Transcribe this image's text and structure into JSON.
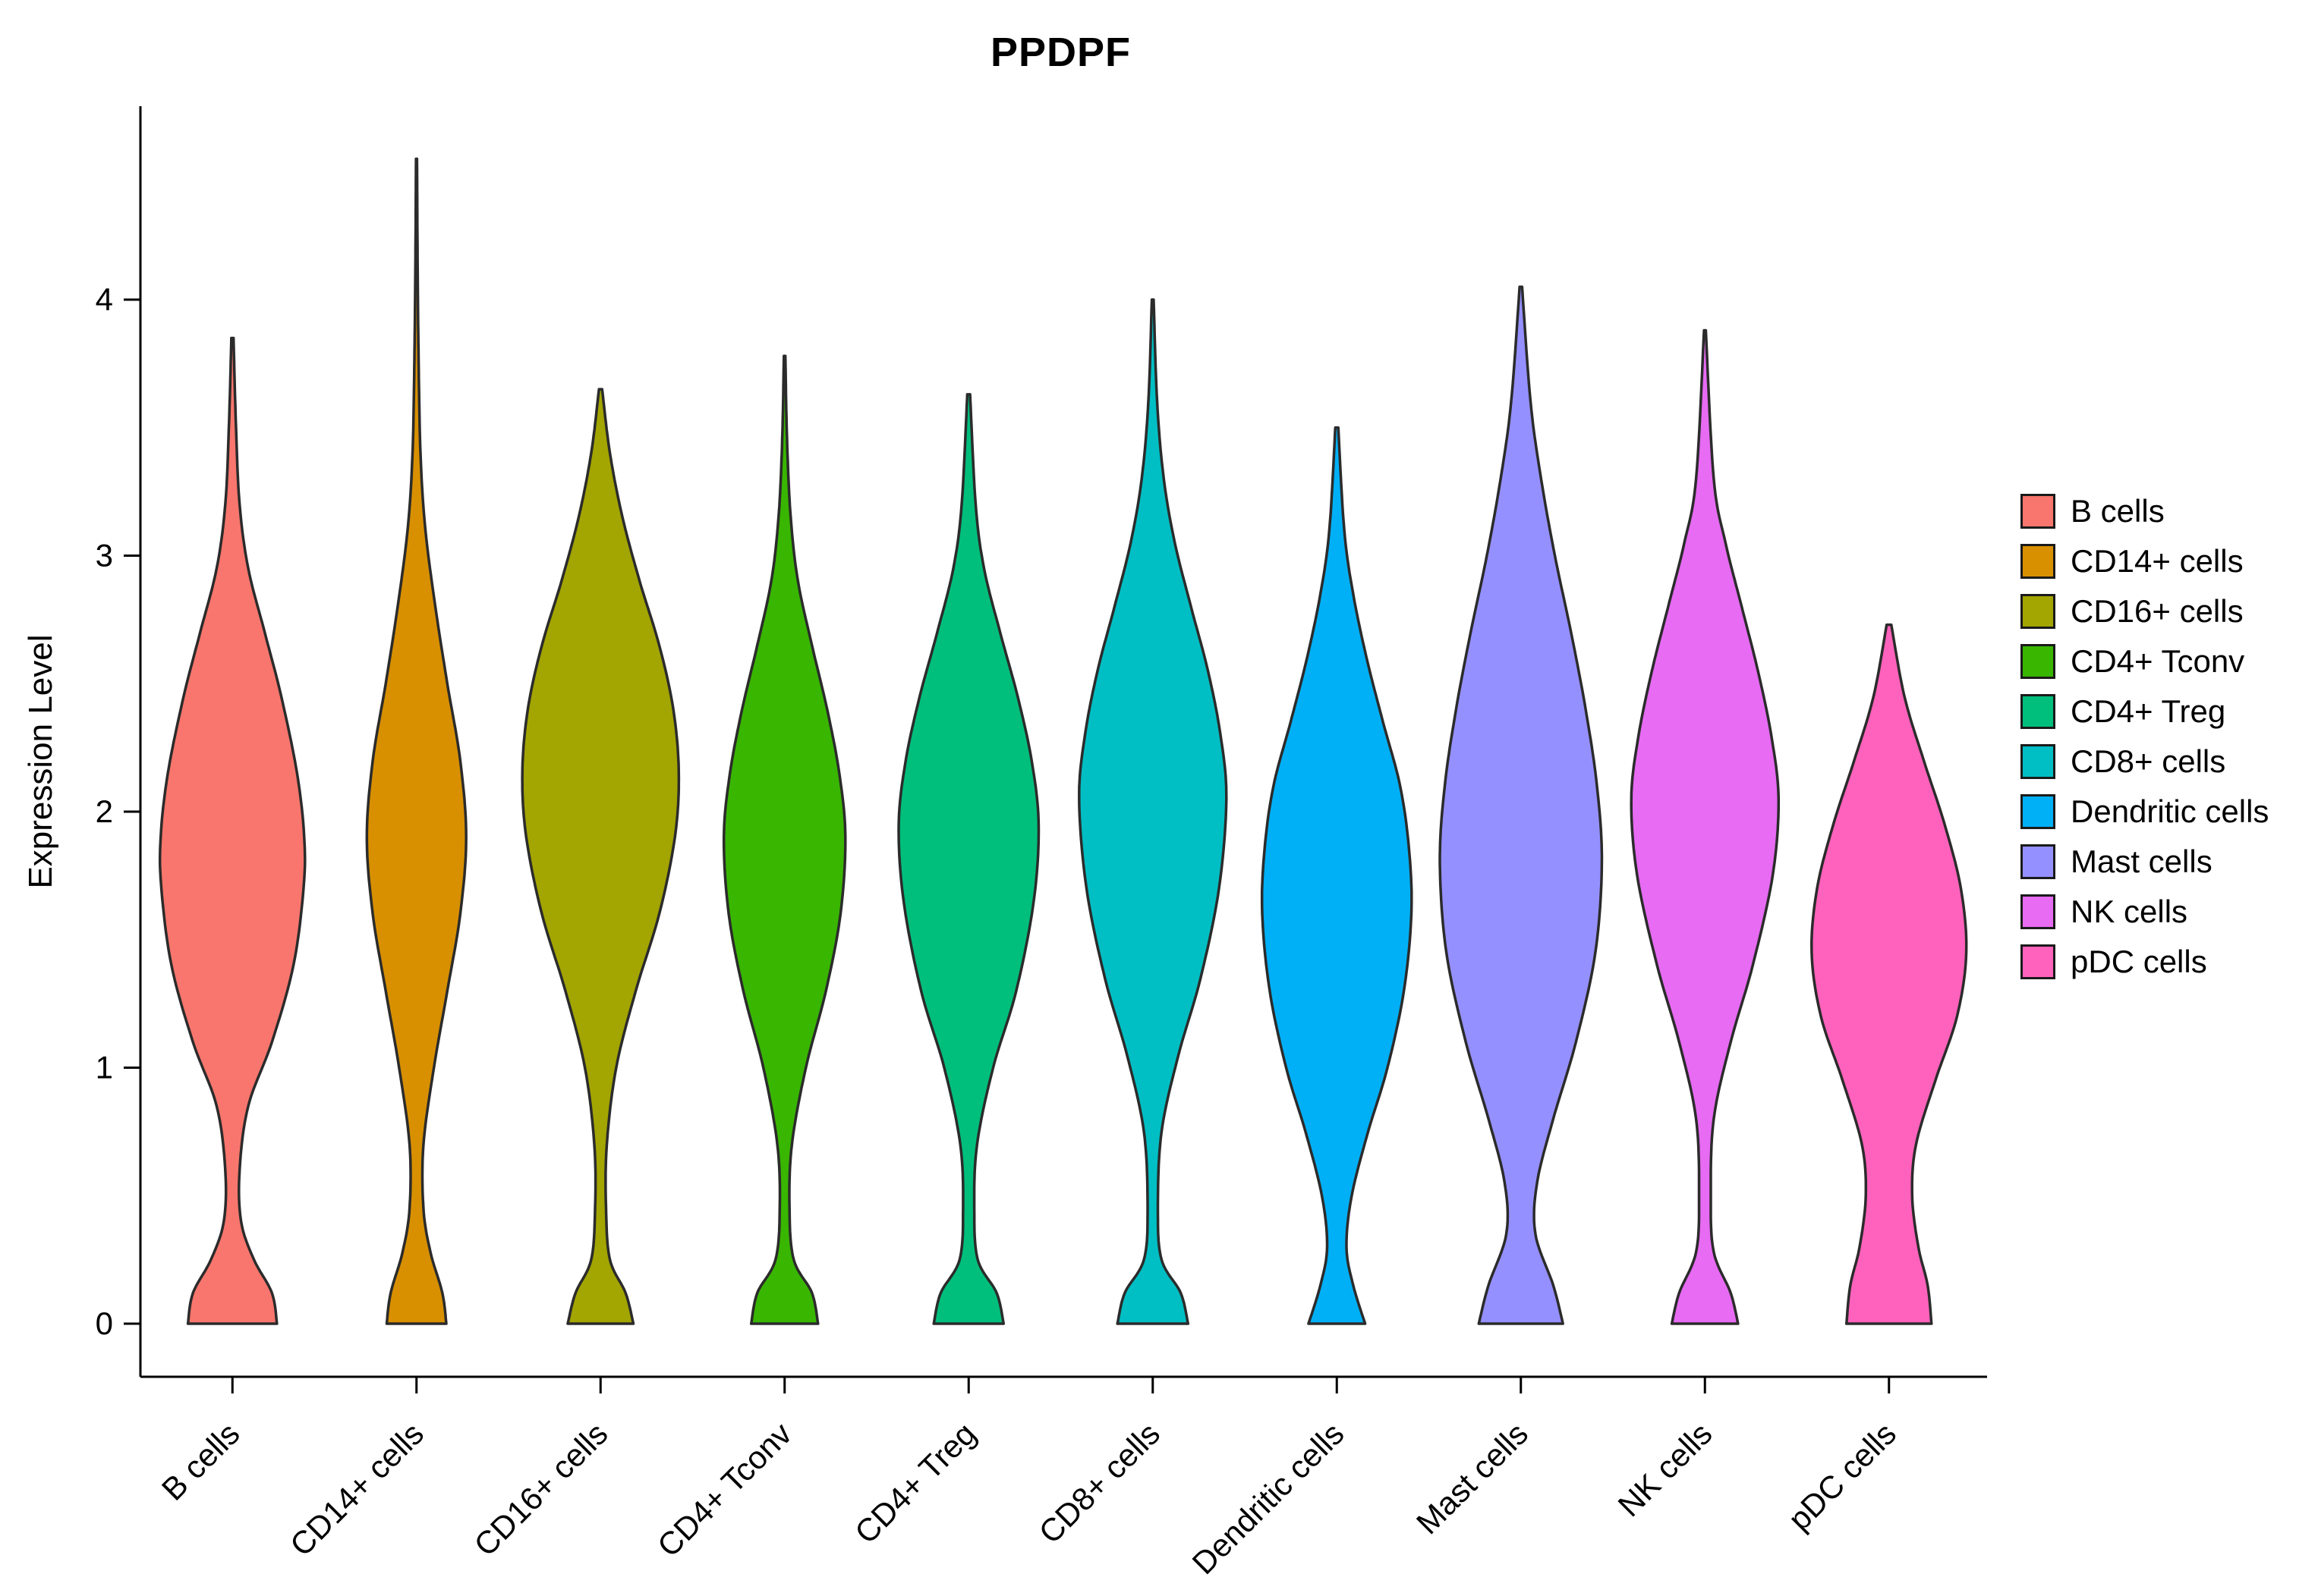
{
  "title": "PPDPF",
  "chart_data": {
    "type": "violin",
    "title": "PPDPF",
    "xlabel": "",
    "ylabel": "Expression Level",
    "ylim": [
      0,
      4.7
    ],
    "y_ticks": [
      0,
      1,
      2,
      3,
      4
    ],
    "grid": false,
    "legend_position": "right",
    "outline_color": "#2b2b2b",
    "categories": [
      "B cells",
      "CD14+ cells",
      "CD16+ cells",
      "CD4+ Tconv",
      "CD4+ Treg",
      "CD8+ cells",
      "Dendritic cells",
      "Mast cells",
      "NK cells",
      "pDC cells"
    ],
    "series": [
      {
        "name": "B cells",
        "color": "#F8766D",
        "max_expression": 3.85,
        "peak_at": 1.85,
        "rel_width": 0.78,
        "profile": [
          [
            0,
            0.62
          ],
          [
            0.12,
            0.55
          ],
          [
            0.25,
            0.3
          ],
          [
            0.4,
            0.12
          ],
          [
            0.6,
            0.1
          ],
          [
            0.85,
            0.22
          ],
          [
            1.1,
            0.55
          ],
          [
            1.4,
            0.85
          ],
          [
            1.7,
            0.99
          ],
          [
            1.9,
            1.0
          ],
          [
            2.15,
            0.9
          ],
          [
            2.45,
            0.68
          ],
          [
            2.7,
            0.45
          ],
          [
            2.95,
            0.22
          ],
          [
            3.2,
            0.1
          ],
          [
            3.5,
            0.05
          ],
          [
            3.85,
            0.015
          ]
        ]
      },
      {
        "name": "CD14+ cells",
        "color": "#D89000",
        "max_expression": 4.55,
        "peak_at": 1.9,
        "rel_width": 0.54,
        "profile": [
          [
            0,
            0.6
          ],
          [
            0.12,
            0.52
          ],
          [
            0.28,
            0.28
          ],
          [
            0.45,
            0.14
          ],
          [
            0.7,
            0.14
          ],
          [
            1.0,
            0.35
          ],
          [
            1.3,
            0.62
          ],
          [
            1.6,
            0.88
          ],
          [
            1.9,
            1.0
          ],
          [
            2.2,
            0.88
          ],
          [
            2.5,
            0.62
          ],
          [
            2.8,
            0.38
          ],
          [
            3.1,
            0.18
          ],
          [
            3.4,
            0.08
          ],
          [
            3.8,
            0.04
          ],
          [
            4.2,
            0.02
          ],
          [
            4.55,
            0.01
          ]
        ]
      },
      {
        "name": "CD16+ cells",
        "color": "#A3A500",
        "max_expression": 3.65,
        "peak_at": 2.15,
        "rel_width": 0.85,
        "profile": [
          [
            0,
            0.42
          ],
          [
            0.12,
            0.32
          ],
          [
            0.25,
            0.12
          ],
          [
            0.45,
            0.07
          ],
          [
            0.7,
            0.08
          ],
          [
            1.0,
            0.2
          ],
          [
            1.3,
            0.45
          ],
          [
            1.6,
            0.75
          ],
          [
            1.9,
            0.95
          ],
          [
            2.15,
            1.0
          ],
          [
            2.4,
            0.93
          ],
          [
            2.65,
            0.75
          ],
          [
            2.9,
            0.5
          ],
          [
            3.15,
            0.28
          ],
          [
            3.4,
            0.12
          ],
          [
            3.65,
            0.02
          ]
        ]
      },
      {
        "name": "CD4+ Tconv",
        "color": "#39B600",
        "max_expression": 3.78,
        "peak_at": 1.9,
        "rel_width": 0.66,
        "profile": [
          [
            0,
            0.55
          ],
          [
            0.12,
            0.45
          ],
          [
            0.25,
            0.15
          ],
          [
            0.45,
            0.08
          ],
          [
            0.7,
            0.12
          ],
          [
            1.0,
            0.35
          ],
          [
            1.3,
            0.68
          ],
          [
            1.6,
            0.92
          ],
          [
            1.9,
            1.0
          ],
          [
            2.15,
            0.9
          ],
          [
            2.4,
            0.7
          ],
          [
            2.65,
            0.45
          ],
          [
            2.9,
            0.22
          ],
          [
            3.15,
            0.1
          ],
          [
            3.45,
            0.04
          ],
          [
            3.78,
            0.012
          ]
        ]
      },
      {
        "name": "CD4+ Treg",
        "color": "#00BF7D",
        "max_expression": 3.63,
        "peak_at": 1.95,
        "rel_width": 0.76,
        "profile": [
          [
            0,
            0.5
          ],
          [
            0.12,
            0.4
          ],
          [
            0.25,
            0.13
          ],
          [
            0.45,
            0.08
          ],
          [
            0.7,
            0.12
          ],
          [
            1.0,
            0.35
          ],
          [
            1.3,
            0.68
          ],
          [
            1.65,
            0.93
          ],
          [
            1.95,
            1.0
          ],
          [
            2.2,
            0.9
          ],
          [
            2.45,
            0.7
          ],
          [
            2.7,
            0.45
          ],
          [
            2.95,
            0.22
          ],
          [
            3.2,
            0.1
          ],
          [
            3.63,
            0.02
          ]
        ]
      },
      {
        "name": "CD8+ cells",
        "color": "#00BFC4",
        "max_expression": 4.0,
        "peak_at": 2.05,
        "rel_width": 0.8,
        "profile": [
          [
            0,
            0.48
          ],
          [
            0.12,
            0.38
          ],
          [
            0.25,
            0.12
          ],
          [
            0.45,
            0.07
          ],
          [
            0.75,
            0.12
          ],
          [
            1.05,
            0.35
          ],
          [
            1.35,
            0.65
          ],
          [
            1.7,
            0.9
          ],
          [
            2.05,
            1.0
          ],
          [
            2.3,
            0.92
          ],
          [
            2.55,
            0.75
          ],
          [
            2.8,
            0.52
          ],
          [
            3.05,
            0.3
          ],
          [
            3.3,
            0.15
          ],
          [
            3.6,
            0.06
          ],
          [
            4.0,
            0.012
          ]
        ]
      },
      {
        "name": "Dendritic cells",
        "color": "#00B0F6",
        "max_expression": 3.5,
        "peak_at": 1.6,
        "rel_width": 0.81,
        "profile": [
          [
            0,
            0.38
          ],
          [
            0.15,
            0.22
          ],
          [
            0.3,
            0.13
          ],
          [
            0.5,
            0.2
          ],
          [
            0.75,
            0.42
          ],
          [
            1.0,
            0.68
          ],
          [
            1.3,
            0.9
          ],
          [
            1.6,
            1.0
          ],
          [
            1.85,
            0.97
          ],
          [
            2.1,
            0.85
          ],
          [
            2.35,
            0.62
          ],
          [
            2.6,
            0.4
          ],
          [
            2.85,
            0.22
          ],
          [
            3.1,
            0.1
          ],
          [
            3.5,
            0.02
          ]
        ]
      },
      {
        "name": "Mast cells",
        "color": "#9590FF",
        "max_expression": 4.05,
        "peak_at": 1.8,
        "rel_width": 0.88,
        "profile": [
          [
            0,
            0.52
          ],
          [
            0.15,
            0.4
          ],
          [
            0.35,
            0.18
          ],
          [
            0.55,
            0.2
          ],
          [
            0.8,
            0.4
          ],
          [
            1.1,
            0.68
          ],
          [
            1.45,
            0.92
          ],
          [
            1.8,
            1.0
          ],
          [
            2.1,
            0.94
          ],
          [
            2.4,
            0.8
          ],
          [
            2.7,
            0.62
          ],
          [
            3.0,
            0.42
          ],
          [
            3.3,
            0.25
          ],
          [
            3.6,
            0.12
          ],
          [
            4.05,
            0.015
          ]
        ]
      },
      {
        "name": "NK cells",
        "color": "#E76BF3",
        "max_expression": 3.88,
        "peak_at": 2.05,
        "rel_width": 0.8,
        "profile": [
          [
            0,
            0.45
          ],
          [
            0.12,
            0.35
          ],
          [
            0.28,
            0.12
          ],
          [
            0.5,
            0.08
          ],
          [
            0.8,
            0.12
          ],
          [
            1.1,
            0.35
          ],
          [
            1.4,
            0.65
          ],
          [
            1.75,
            0.92
          ],
          [
            2.05,
            1.0
          ],
          [
            2.3,
            0.9
          ],
          [
            2.55,
            0.72
          ],
          [
            2.8,
            0.5
          ],
          [
            3.05,
            0.28
          ],
          [
            3.3,
            0.12
          ],
          [
            3.88,
            0.012
          ]
        ]
      },
      {
        "name": "pDC cells",
        "color": "#FF62BC",
        "max_expression": 2.73,
        "peak_at": 1.45,
        "rel_width": 0.84,
        "profile": [
          [
            0,
            0.55
          ],
          [
            0.15,
            0.5
          ],
          [
            0.3,
            0.38
          ],
          [
            0.5,
            0.3
          ],
          [
            0.7,
            0.35
          ],
          [
            0.95,
            0.6
          ],
          [
            1.2,
            0.88
          ],
          [
            1.45,
            1.0
          ],
          [
            1.7,
            0.93
          ],
          [
            1.95,
            0.72
          ],
          [
            2.2,
            0.45
          ],
          [
            2.45,
            0.2
          ],
          [
            2.73,
            0.03
          ]
        ]
      }
    ]
  }
}
